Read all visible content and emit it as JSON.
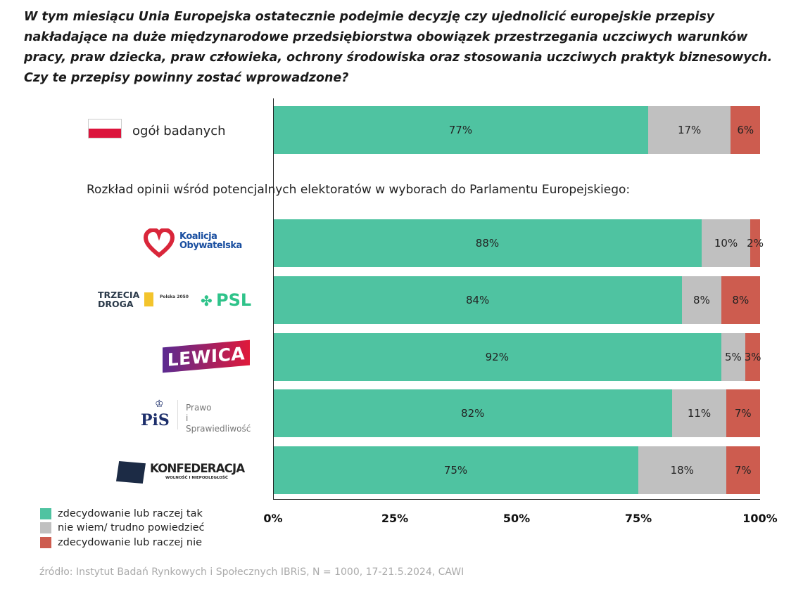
{
  "chart_data": {
    "type": "bar",
    "orientation": "horizontal-stacked",
    "title": "W tym miesiącu Unia Europejska ostatecznie podejmie decyzję czy ujednolicić europejskie przepisy nakładające na duże międzynarodowe przedsiębiorstwa obowiązek przestrzegania uczciwych warunków pracy, praw dziecka, praw człowieka, ochrony środowiska oraz stosowania uczciwych praktyk biznesowych. Czy te przepisy powinny zostać wprowadzone?",
    "title_lines": [
      "W tym miesiącu Unia Europejska ostatecznie podejmie decyzję czy ujednolicić europejskie przepisy",
      "nakładające na duże międzynarodowe przedsiębiorstwa obowiązek przestrzegania uczciwych warunków",
      "pracy, praw dziecka, praw człowieka, ochrony środowiska oraz stosowania uczciwych praktyk biznesowych.",
      "Czy te przepisy powinny zostać wprowadzone?"
    ],
    "subtitle": "Rozkład opinii wśród potencjalnych elektoratów w wyborach do Parlamentu Europejskiego:",
    "overall_label": "ogół badanych",
    "categories": [
      "ogół badanych",
      "Koalicja Obywatelska",
      "Trzecia Droga",
      "Lewica",
      "Prawo i Sprawiedliwość",
      "Konfederacja"
    ],
    "series": [
      {
        "name": "zdecydowanie lub raczej tak",
        "color": "#4fc3a1",
        "values": [
          77,
          88,
          84,
          92,
          82,
          75
        ]
      },
      {
        "name": "nie wiem/ trudno powiedzieć",
        "color": "#c0c0c0",
        "values": [
          17,
          10,
          8,
          5,
          11,
          18
        ]
      },
      {
        "name": "zdecydowanie lub raczej nie",
        "color": "#cd5c4f",
        "values": [
          6,
          2,
          8,
          3,
          7,
          7
        ]
      }
    ],
    "xlim": [
      0,
      100
    ],
    "xticks": [
      "0%",
      "25%",
      "50%",
      "75%",
      "100%"
    ],
    "legend_position": "bottom-left",
    "grid": false,
    "source": "źródło: Instytut Badań Rynkowych i Społecznych IBRiS, N = 1000, 17-21.5.2024, CAWI"
  },
  "logos": {
    "ko": [
      "Koalicja",
      "Obywatelska"
    ],
    "td": [
      "TRZECIA",
      "DROGA",
      "Polska 2050",
      "PSL"
    ],
    "lewica": "LEWICA",
    "pis": [
      "PiS",
      "Prawo",
      "i Sprawiedliwość"
    ],
    "konf": [
      "KONFEDERACJA",
      "WOLNOŚĆ I NIEPODLEGŁOŚĆ"
    ]
  }
}
